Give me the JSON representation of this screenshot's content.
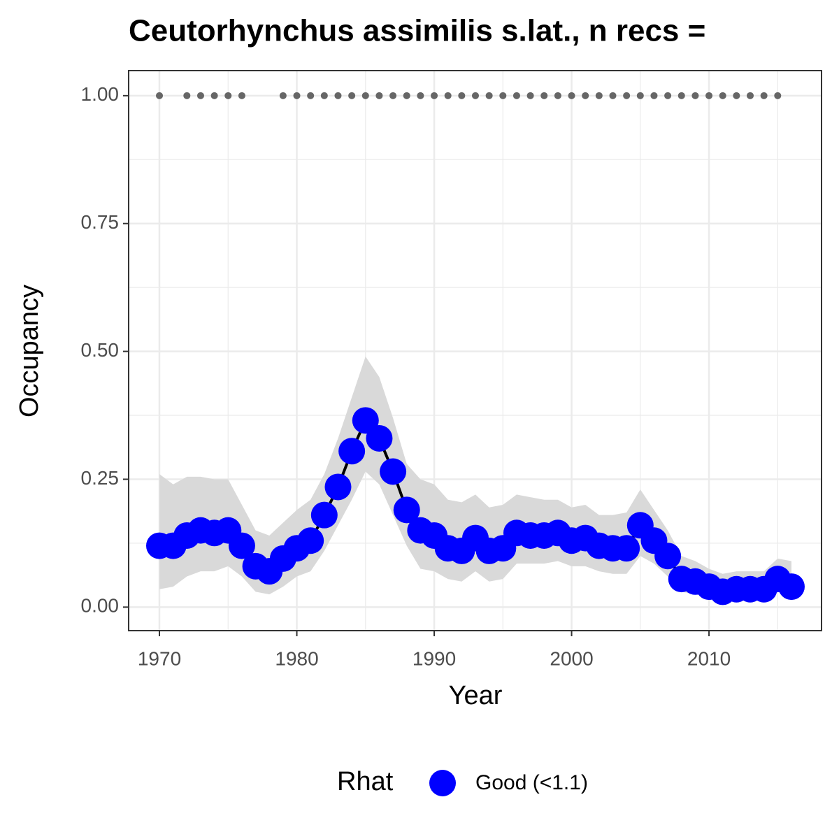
{
  "chart_data": {
    "type": "line",
    "title": "Ceutorhynchus assimilis s.lat., n recs =",
    "x_label": "Year",
    "y_label": "Occupancy",
    "legend_title": "Rhat",
    "x": [
      1970,
      1971,
      1972,
      1973,
      1974,
      1975,
      1976,
      1977,
      1978,
      1979,
      1980,
      1981,
      1982,
      1983,
      1984,
      1985,
      1986,
      1987,
      1988,
      1989,
      1990,
      1991,
      1992,
      1993,
      1994,
      1995,
      1996,
      1997,
      1998,
      1999,
      2000,
      2001,
      2002,
      2003,
      2004,
      2005,
      2006,
      2007,
      2008,
      2009,
      2010,
      2011,
      2012,
      2013,
      2014,
      2015,
      2016
    ],
    "series": [
      {
        "name": "Good (<1.1)",
        "color": "#0000ff",
        "line_color": "#000000",
        "ribbon_color": "#d9d9d9",
        "values": [
          0.12,
          0.12,
          0.14,
          0.15,
          0.145,
          0.15,
          0.12,
          0.08,
          0.07,
          0.095,
          0.115,
          0.13,
          0.18,
          0.235,
          0.305,
          0.365,
          0.33,
          0.265,
          0.19,
          0.15,
          0.14,
          0.115,
          0.11,
          0.135,
          0.11,
          0.115,
          0.145,
          0.14,
          0.14,
          0.145,
          0.13,
          0.135,
          0.12,
          0.115,
          0.115,
          0.16,
          0.13,
          0.1,
          0.055,
          0.05,
          0.04,
          0.03,
          0.035,
          0.035,
          0.035,
          0.055,
          0.04
        ],
        "upper": [
          0.26,
          0.24,
          0.255,
          0.255,
          0.25,
          0.25,
          0.2,
          0.15,
          0.14,
          0.165,
          0.19,
          0.21,
          0.26,
          0.33,
          0.41,
          0.49,
          0.45,
          0.37,
          0.28,
          0.25,
          0.24,
          0.21,
          0.205,
          0.22,
          0.195,
          0.2,
          0.22,
          0.215,
          0.21,
          0.21,
          0.195,
          0.2,
          0.18,
          0.18,
          0.185,
          0.23,
          0.19,
          0.15,
          0.1,
          0.09,
          0.075,
          0.065,
          0.07,
          0.07,
          0.07,
          0.095,
          0.09
        ],
        "lower": [
          0.035,
          0.04,
          0.06,
          0.07,
          0.07,
          0.08,
          0.06,
          0.03,
          0.025,
          0.04,
          0.06,
          0.07,
          0.11,
          0.16,
          0.21,
          0.265,
          0.24,
          0.18,
          0.12,
          0.075,
          0.07,
          0.055,
          0.05,
          0.07,
          0.05,
          0.055,
          0.085,
          0.085,
          0.085,
          0.09,
          0.08,
          0.08,
          0.07,
          0.065,
          0.065,
          0.1,
          0.085,
          0.06,
          0.03,
          0.025,
          0.02,
          0.01,
          0.015,
          0.015,
          0.015,
          0.03,
          0.02
        ]
      }
    ],
    "points": {
      "color": "#666666",
      "x": [
        1970,
        1972,
        1973,
        1974,
        1975,
        1976,
        1979,
        1980,
        1981,
        1982,
        1983,
        1984,
        1985,
        1986,
        1987,
        1988,
        1989,
        1990,
        1991,
        1992,
        1993,
        1994,
        1995,
        1996,
        1997,
        1998,
        1999,
        2000,
        2001,
        2002,
        2003,
        2004,
        2005,
        2006,
        2007,
        2008,
        2009,
        2010,
        2011,
        2012,
        2013,
        2014,
        2015
      ],
      "values": [
        1,
        1,
        1,
        1,
        1,
        1,
        1,
        1,
        1,
        1,
        1,
        1,
        1,
        1,
        1,
        1,
        1,
        1,
        1,
        1,
        1,
        1,
        1,
        1,
        1,
        1,
        1,
        1,
        1,
        1,
        1,
        1,
        1,
        1,
        1,
        1,
        1,
        1,
        1,
        1,
        1,
        1,
        1
      ]
    },
    "xlim": [
      1967.76,
      2018.19
    ],
    "ylim": [
      -0.046,
      1.049
    ],
    "xticks": [
      1970,
      1980,
      1990,
      2000,
      2010
    ],
    "yticks": [
      {
        "value": 0,
        "label": "0.00"
      },
      {
        "value": 0.25,
        "label": "0.25"
      },
      {
        "value": 0.5,
        "label": "0.50"
      },
      {
        "value": 0.75,
        "label": "0.75"
      },
      {
        "value": 1,
        "label": "1.00"
      }
    ],
    "xminor": [
      1975,
      1985,
      1995,
      2005,
      2015
    ],
    "yminor": [
      0.125,
      0.375,
      0.625,
      0.875
    ],
    "grid": true
  }
}
